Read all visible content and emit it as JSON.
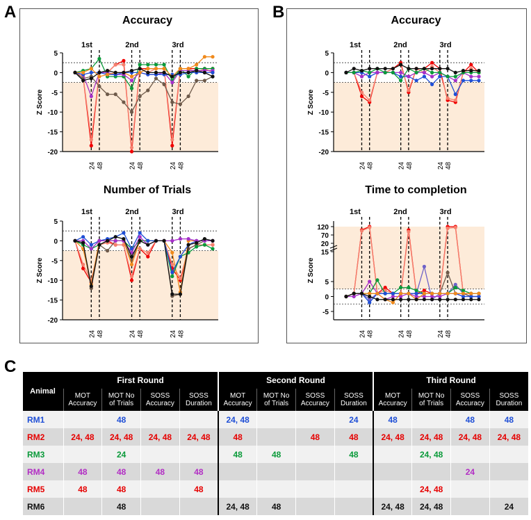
{
  "colors": {
    "blue": "#1f4fd6",
    "red": "#f00000",
    "green": "#0a9a3a",
    "orange": "#f08a1c",
    "purple": "#a530c8",
    "brown": "#6e5a4a",
    "black": "#111111",
    "salmon": "#f5806e",
    "violet": "#6e62c8",
    "shade": "#fdebd9"
  },
  "panels": {
    "a": "A",
    "b": "B",
    "c": "C"
  },
  "chart_data": [
    {
      "id": "A-accuracy",
      "type": "line",
      "title": "Accuracy",
      "ylabel": "Z Score",
      "ylim": [
        -20,
        5
      ],
      "yticks": [
        5,
        0,
        -5,
        -10,
        -15,
        -20
      ],
      "threshold": 2.5,
      "phases": [
        "1st",
        "2nd",
        "3rd"
      ],
      "xticks": [
        "24",
        "48",
        "24",
        "48",
        "24",
        "48"
      ],
      "series": [
        {
          "name": "RM2",
          "color": "red",
          "values": [
            0,
            -1,
            -18.5,
            0,
            0,
            2,
            3,
            -20,
            1,
            1,
            1,
            1,
            -18.5,
            1,
            1,
            1,
            1,
            1
          ]
        },
        {
          "name": "RM5",
          "color": "salmon",
          "values": [
            0,
            -1,
            -17,
            0,
            0,
            2,
            2,
            -19,
            1,
            0,
            1,
            1,
            -17,
            1,
            1,
            0,
            1,
            0
          ]
        },
        {
          "name": "RM3",
          "color": "green",
          "values": [
            0,
            0.5,
            1,
            3.5,
            -1,
            -1,
            -1,
            -4,
            2,
            2,
            2,
            2,
            -2,
            1,
            -1,
            1,
            1,
            1
          ]
        },
        {
          "name": "RM6 (dark)",
          "color": "brown",
          "values": [
            0,
            -1.5,
            -1,
            -3.5,
            -5.5,
            -5.5,
            -7.5,
            -10,
            -6,
            -4.5,
            -1.5,
            -3,
            -7.5,
            -8,
            -6,
            -2,
            -2,
            -1
          ]
        },
        {
          "name": "RM4",
          "color": "purple",
          "values": [
            0,
            -0.5,
            -6,
            0,
            0,
            -0.5,
            -0.5,
            -2,
            0,
            -0.5,
            -0.5,
            0,
            -2.5,
            0.5,
            0.5,
            0.5,
            0.5,
            0.5
          ]
        },
        {
          "name": "RM1",
          "color": "blue",
          "values": [
            0,
            -0.5,
            0,
            0,
            -0.5,
            -0.5,
            0,
            0,
            0,
            -0.5,
            -0.5,
            -0.5,
            -0.5,
            -0.5,
            0,
            0,
            0,
            0
          ]
        },
        {
          "name": "orange",
          "color": "orange",
          "values": [
            0,
            0,
            1,
            -1,
            -0.5,
            0,
            0,
            -1,
            0,
            1,
            1,
            1,
            -1,
            1,
            1,
            2,
            4,
            4
          ]
        },
        {
          "name": "black",
          "color": "black",
          "values": [
            0,
            -2,
            -1.5,
            0,
            0.5,
            0,
            0,
            0.5,
            1,
            0,
            0,
            0,
            -1,
            0,
            0,
            0.5,
            0,
            -1
          ]
        }
      ]
    },
    {
      "id": "B-accuracy",
      "type": "line",
      "title": "Accuracy",
      "ylabel": "Z Score",
      "ylim": [
        -20,
        5
      ],
      "yticks": [
        5,
        0,
        -5,
        -10,
        -15,
        -20
      ],
      "threshold": 2.5,
      "phases": [
        "1st",
        "2nd",
        "3rd"
      ],
      "xticks": [
        "24",
        "48",
        "24",
        "48",
        "24",
        "48"
      ],
      "series": [
        {
          "name": "RM2",
          "color": "red",
          "values": [
            0,
            0,
            -6,
            -7.5,
            0,
            0,
            1,
            2.5,
            -5,
            1,
            1,
            2.5,
            1,
            -7,
            -7.5,
            0,
            2,
            0
          ]
        },
        {
          "name": "RM5",
          "color": "salmon",
          "values": [
            0,
            0,
            -5,
            -7,
            0,
            0,
            1,
            2,
            -4.5,
            1,
            0,
            1.5,
            0,
            -6.5,
            -7,
            0,
            1,
            0
          ]
        },
        {
          "name": "RM1",
          "color": "blue",
          "values": [
            0,
            0,
            0,
            -1,
            0,
            0,
            0,
            -1,
            -1,
            -2,
            -1,
            -3,
            -1,
            -1,
            -5.5,
            -2,
            -2,
            -2
          ]
        },
        {
          "name": "RM4",
          "color": "purple",
          "values": [
            0,
            0,
            -1,
            0,
            0,
            0,
            0,
            0,
            -1,
            0,
            0,
            -1,
            0,
            -1,
            -2,
            0,
            -1,
            -1
          ]
        },
        {
          "name": "RM3",
          "color": "green",
          "values": [
            0,
            0,
            0.5,
            0,
            1,
            0,
            0,
            -2,
            1,
            0,
            1,
            0,
            0,
            -1,
            -1,
            0,
            0,
            0
          ]
        },
        {
          "name": "black",
          "color": "black",
          "values": [
            0,
            1,
            0.5,
            1,
            1,
            1,
            1,
            2,
            1,
            1,
            1,
            1,
            1,
            1,
            0,
            0.5,
            0.5,
            0.5
          ]
        }
      ]
    },
    {
      "id": "A-trials",
      "type": "line",
      "title": "Number of Trials",
      "ylabel": "Z Score",
      "ylim": [
        -20,
        5
      ],
      "yticks": [
        5,
        0,
        -5,
        -10,
        -15,
        -20
      ],
      "threshold": 2.5,
      "phases": [
        "1st",
        "2nd",
        "3rd"
      ],
      "xticks": [
        "24",
        "48",
        "24",
        "48",
        "24",
        "48"
      ],
      "series": [
        {
          "name": "RM2",
          "color": "red",
          "values": [
            0,
            -7,
            -10.5,
            -1,
            0,
            -1,
            -1,
            -10,
            -2,
            -4,
            0,
            0,
            -7,
            -10,
            -2,
            -1,
            -1,
            -1
          ]
        },
        {
          "name": "RM5",
          "color": "salmon",
          "values": [
            0,
            -6,
            -10,
            -1,
            -0.5,
            -1,
            -1,
            -9,
            -2,
            -3,
            0,
            0,
            -6,
            -9.5,
            -2,
            -1,
            -1,
            -1
          ]
        },
        {
          "name": "RM6 (dark)",
          "color": "brown",
          "values": [
            0,
            -1,
            -12,
            -1,
            -2.5,
            0,
            0,
            -5,
            0,
            0,
            0,
            0,
            -14,
            -13.5,
            -2,
            -1,
            0,
            0
          ]
        },
        {
          "name": "orange",
          "color": "orange",
          "values": [
            0,
            -2,
            -11,
            0,
            0,
            0,
            0,
            -6,
            0,
            0,
            0,
            0,
            -3,
            -13,
            0,
            0,
            0,
            0
          ]
        },
        {
          "name": "RM3",
          "color": "green",
          "values": [
            0,
            -1,
            -2,
            -1,
            0,
            0,
            0,
            -2,
            0,
            0,
            0,
            0,
            -9,
            -4,
            -3,
            -1.5,
            -1,
            -2
          ]
        },
        {
          "name": "RM1",
          "color": "blue",
          "values": [
            0,
            1,
            -1,
            0,
            0.5,
            1,
            2,
            -2,
            2,
            0,
            0,
            0,
            -8,
            -4,
            -1,
            0,
            0,
            0
          ]
        },
        {
          "name": "RM4",
          "color": "purple",
          "values": [
            0,
            0,
            -2,
            0,
            0,
            0,
            0,
            -3,
            1,
            -1,
            0,
            0,
            0,
            0.5,
            0.5,
            0,
            0,
            0
          ]
        },
        {
          "name": "black",
          "color": "black",
          "values": [
            0,
            -0.5,
            -11.5,
            -1,
            0,
            1,
            0.5,
            -4,
            0,
            -1,
            0,
            0,
            -13.5,
            -13.5,
            -1,
            -0.5,
            0.5,
            0
          ]
        }
      ]
    },
    {
      "id": "B-time",
      "type": "line",
      "title": "Time to completion",
      "ylabel": "Z Score",
      "ylim": [
        -5,
        120
      ],
      "yticks": [
        "120",
        "70",
        "20",
        "15",
        "5",
        "0",
        "-5"
      ],
      "threshold": 2.5,
      "phases": [
        "1st",
        "2nd",
        "3rd"
      ],
      "xticks": [
        "24",
        "48",
        "24",
        "48",
        "24",
        "48"
      ],
      "series": [
        {
          "name": "RM2",
          "color": "red",
          "values": [
            0,
            1,
            100,
            120,
            1,
            3,
            1,
            1,
            100,
            1,
            2,
            1,
            1,
            120,
            120,
            1,
            1,
            1
          ]
        },
        {
          "name": "RM5",
          "color": "salmon",
          "values": [
            0,
            1,
            95,
            115,
            1,
            2,
            1,
            1,
            90,
            1,
            1,
            1,
            1,
            110,
            115,
            1,
            1,
            1
          ]
        },
        {
          "name": "violet",
          "color": "violet",
          "values": [
            0,
            1,
            1,
            -1,
            1,
            1,
            1,
            1,
            1,
            1,
            10,
            -1,
            1,
            1,
            4,
            1,
            0,
            0
          ]
        },
        {
          "name": "brown",
          "color": "brown",
          "values": [
            0,
            1,
            1,
            1,
            1,
            1,
            1,
            1,
            1,
            1,
            1,
            1,
            1,
            8,
            1,
            1,
            0,
            0
          ]
        },
        {
          "name": "RM4",
          "color": "purple",
          "values": [
            0,
            0,
            1,
            5,
            1,
            -1,
            0,
            0,
            1,
            0,
            0,
            0,
            0,
            1,
            1,
            0,
            0,
            0
          ]
        },
        {
          "name": "RM3",
          "color": "green",
          "values": [
            0,
            1,
            1,
            1,
            5.5,
            1,
            1,
            3,
            3,
            2,
            1,
            1,
            1,
            1,
            3,
            2,
            1,
            1
          ]
        },
        {
          "name": "RM1",
          "color": "blue",
          "values": [
            0,
            1,
            1,
            -2,
            1,
            1,
            1,
            1,
            1,
            1,
            1,
            1,
            1,
            1,
            1,
            0,
            0,
            0
          ]
        },
        {
          "name": "orange",
          "color": "orange",
          "values": [
            0,
            1,
            1,
            1,
            1,
            -1,
            -2,
            1,
            1,
            -1,
            1,
            1,
            1,
            1,
            1,
            1,
            1,
            1
          ]
        },
        {
          "name": "black",
          "color": "black",
          "values": [
            0,
            1,
            1,
            0,
            -1,
            -1,
            -1,
            -1,
            -1,
            -1,
            -1,
            -1,
            -1,
            -1,
            -1,
            -1,
            -1,
            -1
          ]
        }
      ]
    }
  ],
  "table": {
    "animal_header": "Animal",
    "rounds": [
      "First Round",
      "Second Round",
      "Third Round"
    ],
    "subheaders": [
      [
        "MOT",
        "Accuracy"
      ],
      [
        "MOT No",
        "of Trials"
      ],
      [
        "SOSS",
        "Accuracy"
      ],
      [
        "SOSS",
        "Duration"
      ],
      [
        "MOT",
        "Accuracy"
      ],
      [
        "MOT No",
        "of Trials"
      ],
      [
        "SOSS",
        "Accuracy"
      ],
      [
        "SOSS",
        "Duration"
      ],
      [
        "MOT",
        "Accuracy"
      ],
      [
        "MOT No",
        "of Trials"
      ],
      [
        "SOSS",
        "Accuracy"
      ],
      [
        "SOSS",
        "Duration"
      ]
    ],
    "rows": [
      {
        "animal": "RM1",
        "color": "#1f4fd6",
        "cells": [
          "",
          "48",
          "",
          "",
          "24, 48",
          "",
          "",
          "24",
          "48",
          "",
          "48",
          "48"
        ]
      },
      {
        "animal": "RM2",
        "color": "#e60000",
        "cells": [
          "24, 48",
          "24, 48",
          "24, 48",
          "24, 48",
          "48",
          "",
          "48",
          "48",
          "24, 48",
          "24, 48",
          "24, 48",
          "24, 48"
        ]
      },
      {
        "animal": "RM3",
        "color": "#0a9a3a",
        "cells": [
          "",
          "24",
          "",
          "",
          "48",
          "48",
          "",
          "48",
          "",
          "24, 48",
          "",
          ""
        ]
      },
      {
        "animal": "RM4",
        "color": "#b22ec4",
        "cells": [
          "48",
          "48",
          "48",
          "48",
          "",
          "",
          "",
          "",
          "",
          "",
          "24",
          ""
        ]
      },
      {
        "animal": "RM5",
        "color": "#e60000",
        "cells": [
          "48",
          "48",
          "",
          "48",
          "",
          "",
          "",
          "",
          "",
          "24, 48",
          "",
          ""
        ]
      },
      {
        "animal": "RM6",
        "color": "#111111",
        "cells": [
          "",
          "48",
          "",
          "",
          "24, 48",
          "48",
          "",
          "",
          "24, 48",
          "24, 48",
          "",
          "24"
        ]
      }
    ]
  }
}
